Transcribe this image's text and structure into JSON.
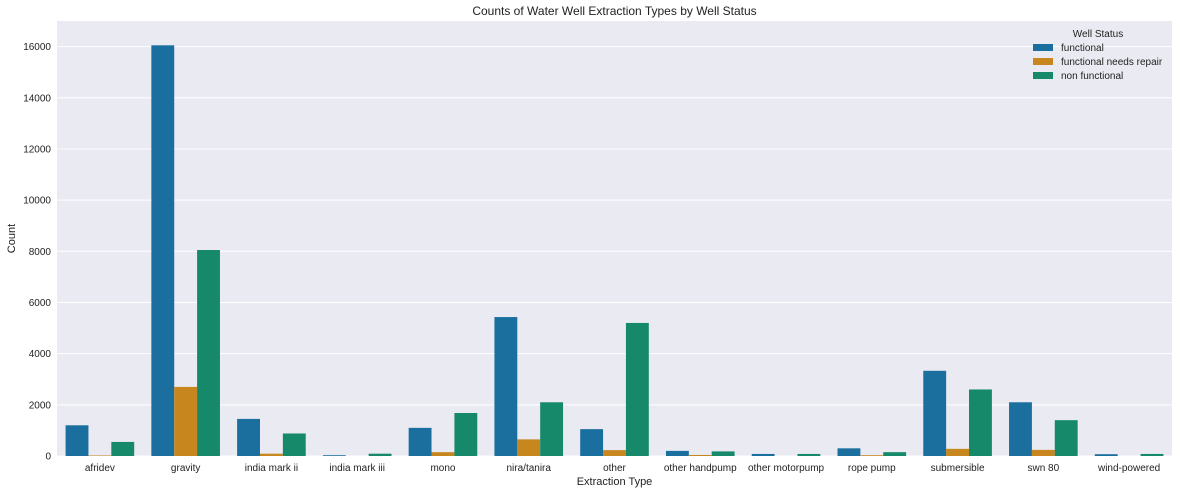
{
  "chart_data": {
    "type": "bar",
    "title": "Counts of Water Well Extraction Types by Well Status",
    "xlabel": "Extraction Type",
    "ylabel": "Count",
    "ylim": [
      0,
      17000
    ],
    "yticks": [
      0,
      2000,
      4000,
      6000,
      8000,
      10000,
      12000,
      14000,
      16000
    ],
    "grid": true,
    "legend": {
      "title": "Well Status",
      "placement": "top-right"
    },
    "categories": [
      "afridev",
      "gravity",
      "india mark ii",
      "india mark iii",
      "mono",
      "nira/tanira",
      "other",
      "other handpump",
      "other motorpump",
      "rope pump",
      "submersible",
      "swn 80",
      "wind-powered"
    ],
    "series": [
      {
        "name": "functional",
        "color": "#1b6f9f",
        "values": [
          1200,
          16050,
          1450,
          30,
          1100,
          5430,
          1050,
          200,
          80,
          300,
          3330,
          2100,
          70
        ]
      },
      {
        "name": "functional needs repair",
        "color": "#c8861f",
        "values": [
          20,
          2700,
          90,
          0,
          150,
          650,
          230,
          40,
          0,
          30,
          280,
          240,
          0
        ]
      },
      {
        "name": "non functional",
        "color": "#16896a",
        "values": [
          550,
          8050,
          880,
          90,
          1680,
          2100,
          5200,
          180,
          80,
          150,
          2600,
          1400,
          80
        ]
      }
    ]
  }
}
